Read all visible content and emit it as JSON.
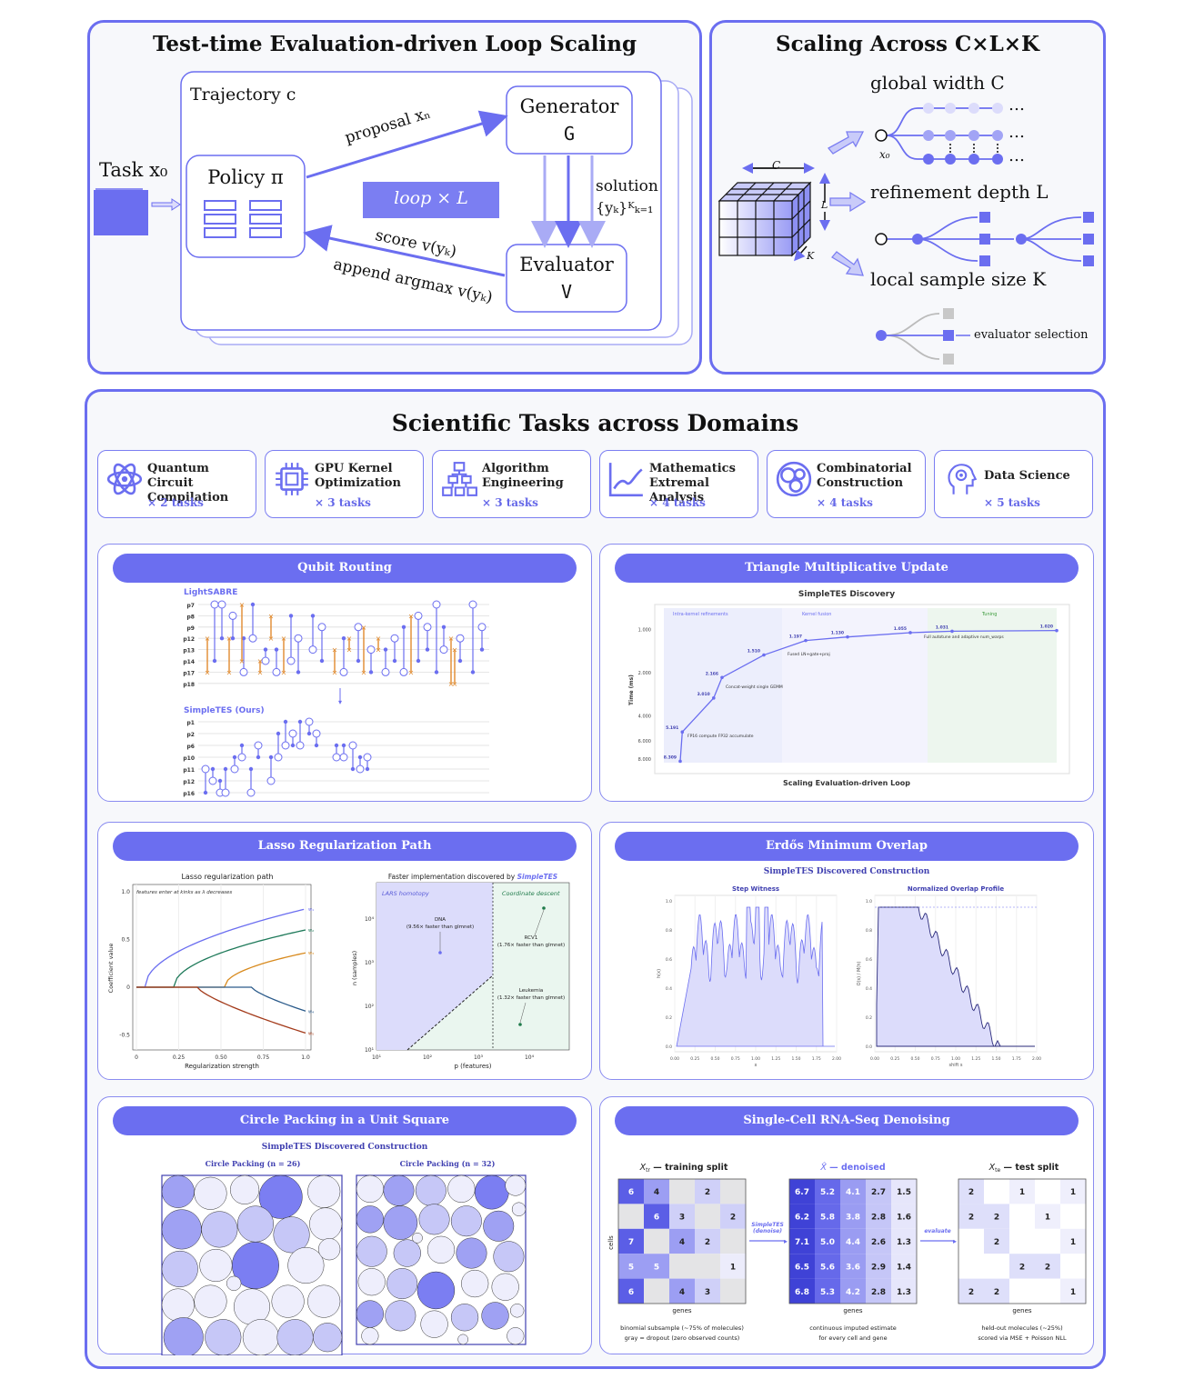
{
  "top_left": {
    "title": "Test-time Evaluation-driven Loop Scaling",
    "trajectory": "Trajectory c",
    "task": "Task x₀",
    "policy": "Policy π",
    "generator": "Generator",
    "generator_sym": "G",
    "evaluator": "Evaluator",
    "evaluator_sym": "V",
    "proposal": "proposal xₙ",
    "solution": "solution",
    "solution_set": "{yₖ}ᴷₖ₌₁",
    "loop": "loop × L",
    "score": "score v(yₖ)",
    "append": "append argmax v(yₖ)"
  },
  "top_right": {
    "title": "Scaling Across C×L×K",
    "cube_c": "C",
    "cube_l": "L",
    "cube_k": "K",
    "global_width": "global width C",
    "refinement_depth": "refinement depth L",
    "local_sample": "local sample size K",
    "x0": "x₀",
    "ellipsis": "…",
    "evaluator_selection": "evaluator selection"
  },
  "middle": {
    "title": "Scientific Tasks across Domains",
    "tasks": [
      {
        "line1": "Quantum Circuit",
        "line2": "Compilation",
        "count": "× 2 tasks",
        "icon": "atom-icon"
      },
      {
        "line1": "GPU Kernel",
        "line2": "Optimization",
        "count": "× 3 tasks",
        "icon": "chip-icon"
      },
      {
        "line1": "Algorithm",
        "line2": "Engineering",
        "count": "× 3 tasks",
        "icon": "hierarchy-icon"
      },
      {
        "line1": "Mathematics",
        "line2": "Extremal Analysis",
        "count": "× 4 tasks",
        "icon": "line-chart-icon"
      },
      {
        "line1": "Combinatorial",
        "line2": "Construction",
        "count": "× 4 tasks",
        "icon": "circles-icon"
      },
      {
        "line1": "Data Science",
        "line2": "",
        "count": "× 5 tasks",
        "icon": "head-gear-icon"
      }
    ]
  },
  "qubit": {
    "title": "Qubit Routing",
    "lightsabre": "LightSABRE",
    "simpletes": "SimpleTES (Ours)",
    "wires_top": [
      "p7",
      "p8",
      "p9",
      "p12",
      "p13",
      "p14",
      "p17",
      "p18"
    ],
    "wires_bottom": [
      "p1",
      "p2",
      "p6",
      "p10",
      "p11",
      "p12",
      "p16"
    ]
  },
  "triangle": {
    "title": "Triangle Multiplicative Update",
    "chart_title": "SimpleTES Discovery",
    "xlabel": "Scaling Evaluation-driven Loop",
    "ylabel": "Time (ms)",
    "region_labels": [
      "Intra-kernel refinements",
      "Kernel fusion",
      "Tuning"
    ],
    "annotations": [
      "FP16 compute FP32 accumulate",
      "Concat-weight single GEMM",
      "Fused LN+gate+proj",
      "Full autotune and adaptive num_warps"
    ],
    "chart_data": {
      "type": "line",
      "ylim": [
        8.5,
        0.8
      ],
      "yticks": [
        "1.000",
        "2.000",
        "4.000",
        "6.000",
        "8.000"
      ],
      "points": [
        {
          "x": 0,
          "y": 8.309,
          "label": "8.309"
        },
        {
          "x": 0.05,
          "y": 5.191,
          "label": "5.191"
        },
        {
          "x": 0.8,
          "y": 3.01,
          "label": "3.010"
        },
        {
          "x": 1.0,
          "y": 2.166,
          "label": "2.166"
        },
        {
          "x": 2.0,
          "y": 1.51,
          "label": "1.510"
        },
        {
          "x": 3.0,
          "y": 1.197,
          "label": "1.197"
        },
        {
          "x": 4.0,
          "y": 1.13,
          "label": "1.130"
        },
        {
          "x": 5.5,
          "y": 1.055,
          "label": "1.055"
        },
        {
          "x": 6.5,
          "y": 1.031,
          "label": "1.031"
        },
        {
          "x": 9.0,
          "y": 1.02,
          "label": "1.020"
        }
      ]
    }
  },
  "lasso": {
    "title": "Lasso Regularization Path",
    "left_title": "Lasso regularization path",
    "left_note": "features enter at kinks as λ decreases",
    "left_xlabel": "Regularization strength",
    "left_ylabel": "Coefficient value",
    "left_xticks": [
      "0",
      "0.25",
      "0.50",
      "0.75",
      "1.0"
    ],
    "left_yticks": [
      "1.0",
      "0.5",
      "0",
      "-0.5"
    ],
    "series_labels": [
      "w₁",
      "w₂",
      "w₃",
      "w₄",
      "w₅"
    ],
    "right_title": "Faster implementation discovered by",
    "right_title_em": "SimpleTES",
    "lars": "LARS homotopy",
    "cd": "Coordinate descent",
    "dna": "DNA",
    "dna_note": "(9.56× faster than glmnet)",
    "rcv1": "RCV1",
    "rcv1_note": "(1.76× faster than glmnet)",
    "leuk": "Leukemia",
    "leuk_note": "(1.32× faster than glmnet)",
    "right_xlabel": "p (features)",
    "right_ylabel": "n (samples)",
    "right_xticks": [
      "10¹",
      "10²",
      "10³",
      "10⁴"
    ],
    "right_yticks": [
      "10⁴",
      "10³",
      "10²",
      "10¹"
    ]
  },
  "erdos": {
    "title": "Erdős Minimum Overlap",
    "chart_title": "SimpleTES Discovered Construction",
    "step_title": "Step Witness",
    "overlap_title": "Normalized Overlap Profile",
    "step_xlabel": "x",
    "step_ylabel": "h(x)",
    "overlap_xlabel": "shift s",
    "overlap_ylabel": "O(s) / M(h)",
    "xticks": [
      "0.00",
      "0.25",
      "0.50",
      "0.75",
      "1.00",
      "1.25",
      "1.50",
      "1.75",
      "2.00"
    ],
    "yticks": [
      "1.0",
      "0.8",
      "0.6",
      "0.4",
      "0.2",
      "0.0"
    ]
  },
  "circle": {
    "title": "Circle Packing in a Unit Square",
    "chart_title": "SimpleTES Discovered Construction",
    "left_label": "Circle Packing (n = 26)",
    "right_label": "Circle Packing (n = 32)"
  },
  "rna": {
    "title": "Single-Cell RNA-Seq Denoising",
    "train_title_sym": "X",
    "train_title_sub": "tr",
    "train_title": " — training split",
    "den_title_sym": "X̂",
    "den_title": " — denoised",
    "test_title_sym": "X",
    "test_title_sub": "te",
    "test_title": " — test split",
    "cells": "cells",
    "genes": "genes",
    "arrow1": "SimpleTES",
    "arrow1b": "(denoise)",
    "arrow2": "evaluate",
    "train_cap1": "binomial subsample (~75% of molecules)",
    "train_cap2": "gray = dropout (zero observed counts)",
    "den_cap1": "continuous imputed estimate",
    "den_cap2": "for every cell and gene",
    "test_cap1": "held-out molecules (~25%)",
    "test_cap2": "scored via MSE + Poisson NLL",
    "train": [
      [
        "6",
        "4",
        "",
        "2",
        ""
      ],
      [
        "",
        "6",
        "3",
        "",
        "2"
      ],
      [
        "7",
        "",
        "4",
        "2",
        ""
      ],
      [
        "5",
        "5",
        "",
        "",
        "1"
      ],
      [
        "6",
        "",
        "4",
        "3",
        ""
      ]
    ],
    "denoised": [
      [
        "6.7",
        "5.2",
        "4.1",
        "2.7",
        "1.5"
      ],
      [
        "6.2",
        "5.8",
        "3.8",
        "2.8",
        "1.6"
      ],
      [
        "7.1",
        "5.0",
        "4.4",
        "2.6",
        "1.3"
      ],
      [
        "6.5",
        "5.6",
        "3.6",
        "2.9",
        "1.4"
      ],
      [
        "6.8",
        "5.3",
        "4.2",
        "2.8",
        "1.3"
      ]
    ],
    "test": [
      [
        "2",
        "",
        "1",
        "",
        "1"
      ],
      [
        "2",
        "2",
        "",
        "1",
        ""
      ],
      [
        "",
        "2",
        "",
        "",
        "1"
      ],
      [
        "",
        "",
        "2",
        "2",
        ""
      ],
      [
        "2",
        "2",
        "",
        "",
        "1"
      ]
    ]
  },
  "colors": {
    "accent": "#6b6ef0",
    "fill": "#dcdcfb",
    "dark": "#3f3fb0"
  }
}
